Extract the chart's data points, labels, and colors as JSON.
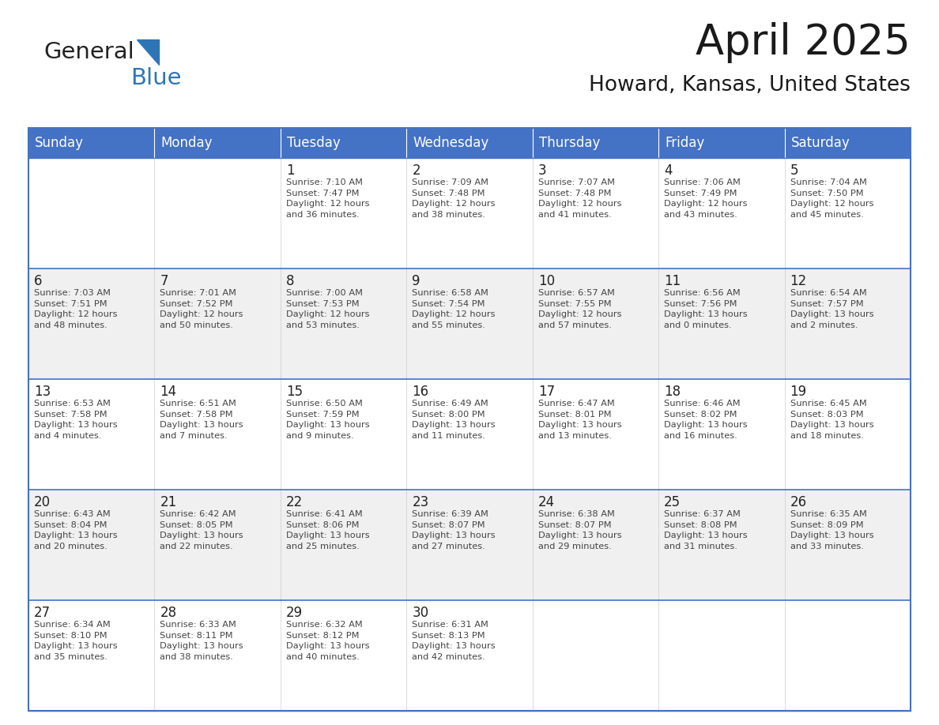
{
  "title": "April 2025",
  "subtitle": "Howard, Kansas, United States",
  "header_color": "#4472C4",
  "header_text_color": "#FFFFFF",
  "cell_bg_white": "#FFFFFF",
  "cell_bg_gray": "#F0F0F0",
  "border_color": "#4472C4",
  "row_divider_color": "#4472C4",
  "day_number_color": "#222222",
  "text_color": "#444444",
  "days_of_week": [
    "Sunday",
    "Monday",
    "Tuesday",
    "Wednesday",
    "Thursday",
    "Friday",
    "Saturday"
  ],
  "weeks": [
    [
      {
        "day": "",
        "info": ""
      },
      {
        "day": "",
        "info": ""
      },
      {
        "day": "1",
        "info": "Sunrise: 7:10 AM\nSunset: 7:47 PM\nDaylight: 12 hours\nand 36 minutes."
      },
      {
        "day": "2",
        "info": "Sunrise: 7:09 AM\nSunset: 7:48 PM\nDaylight: 12 hours\nand 38 minutes."
      },
      {
        "day": "3",
        "info": "Sunrise: 7:07 AM\nSunset: 7:48 PM\nDaylight: 12 hours\nand 41 minutes."
      },
      {
        "day": "4",
        "info": "Sunrise: 7:06 AM\nSunset: 7:49 PM\nDaylight: 12 hours\nand 43 minutes."
      },
      {
        "day": "5",
        "info": "Sunrise: 7:04 AM\nSunset: 7:50 PM\nDaylight: 12 hours\nand 45 minutes."
      }
    ],
    [
      {
        "day": "6",
        "info": "Sunrise: 7:03 AM\nSunset: 7:51 PM\nDaylight: 12 hours\nand 48 minutes."
      },
      {
        "day": "7",
        "info": "Sunrise: 7:01 AM\nSunset: 7:52 PM\nDaylight: 12 hours\nand 50 minutes."
      },
      {
        "day": "8",
        "info": "Sunrise: 7:00 AM\nSunset: 7:53 PM\nDaylight: 12 hours\nand 53 minutes."
      },
      {
        "day": "9",
        "info": "Sunrise: 6:58 AM\nSunset: 7:54 PM\nDaylight: 12 hours\nand 55 minutes."
      },
      {
        "day": "10",
        "info": "Sunrise: 6:57 AM\nSunset: 7:55 PM\nDaylight: 12 hours\nand 57 minutes."
      },
      {
        "day": "11",
        "info": "Sunrise: 6:56 AM\nSunset: 7:56 PM\nDaylight: 13 hours\nand 0 minutes."
      },
      {
        "day": "12",
        "info": "Sunrise: 6:54 AM\nSunset: 7:57 PM\nDaylight: 13 hours\nand 2 minutes."
      }
    ],
    [
      {
        "day": "13",
        "info": "Sunrise: 6:53 AM\nSunset: 7:58 PM\nDaylight: 13 hours\nand 4 minutes."
      },
      {
        "day": "14",
        "info": "Sunrise: 6:51 AM\nSunset: 7:58 PM\nDaylight: 13 hours\nand 7 minutes."
      },
      {
        "day": "15",
        "info": "Sunrise: 6:50 AM\nSunset: 7:59 PM\nDaylight: 13 hours\nand 9 minutes."
      },
      {
        "day": "16",
        "info": "Sunrise: 6:49 AM\nSunset: 8:00 PM\nDaylight: 13 hours\nand 11 minutes."
      },
      {
        "day": "17",
        "info": "Sunrise: 6:47 AM\nSunset: 8:01 PM\nDaylight: 13 hours\nand 13 minutes."
      },
      {
        "day": "18",
        "info": "Sunrise: 6:46 AM\nSunset: 8:02 PM\nDaylight: 13 hours\nand 16 minutes."
      },
      {
        "day": "19",
        "info": "Sunrise: 6:45 AM\nSunset: 8:03 PM\nDaylight: 13 hours\nand 18 minutes."
      }
    ],
    [
      {
        "day": "20",
        "info": "Sunrise: 6:43 AM\nSunset: 8:04 PM\nDaylight: 13 hours\nand 20 minutes."
      },
      {
        "day": "21",
        "info": "Sunrise: 6:42 AM\nSunset: 8:05 PM\nDaylight: 13 hours\nand 22 minutes."
      },
      {
        "day": "22",
        "info": "Sunrise: 6:41 AM\nSunset: 8:06 PM\nDaylight: 13 hours\nand 25 minutes."
      },
      {
        "day": "23",
        "info": "Sunrise: 6:39 AM\nSunset: 8:07 PM\nDaylight: 13 hours\nand 27 minutes."
      },
      {
        "day": "24",
        "info": "Sunrise: 6:38 AM\nSunset: 8:07 PM\nDaylight: 13 hours\nand 29 minutes."
      },
      {
        "day": "25",
        "info": "Sunrise: 6:37 AM\nSunset: 8:08 PM\nDaylight: 13 hours\nand 31 minutes."
      },
      {
        "day": "26",
        "info": "Sunrise: 6:35 AM\nSunset: 8:09 PM\nDaylight: 13 hours\nand 33 minutes."
      }
    ],
    [
      {
        "day": "27",
        "info": "Sunrise: 6:34 AM\nSunset: 8:10 PM\nDaylight: 13 hours\nand 35 minutes."
      },
      {
        "day": "28",
        "info": "Sunrise: 6:33 AM\nSunset: 8:11 PM\nDaylight: 13 hours\nand 38 minutes."
      },
      {
        "day": "29",
        "info": "Sunrise: 6:32 AM\nSunset: 8:12 PM\nDaylight: 13 hours\nand 40 minutes."
      },
      {
        "day": "30",
        "info": "Sunrise: 6:31 AM\nSunset: 8:13 PM\nDaylight: 13 hours\nand 42 minutes."
      },
      {
        "day": "",
        "info": ""
      },
      {
        "day": "",
        "info": ""
      },
      {
        "day": "",
        "info": ""
      }
    ]
  ],
  "logo_general_color": "#222222",
  "logo_blue_color": "#2E75B6",
  "logo_triangle_color": "#2E75B6",
  "title_fontsize": 38,
  "subtitle_fontsize": 19,
  "header_fontsize": 12,
  "day_number_fontsize": 12,
  "cell_text_fontsize": 8.2
}
